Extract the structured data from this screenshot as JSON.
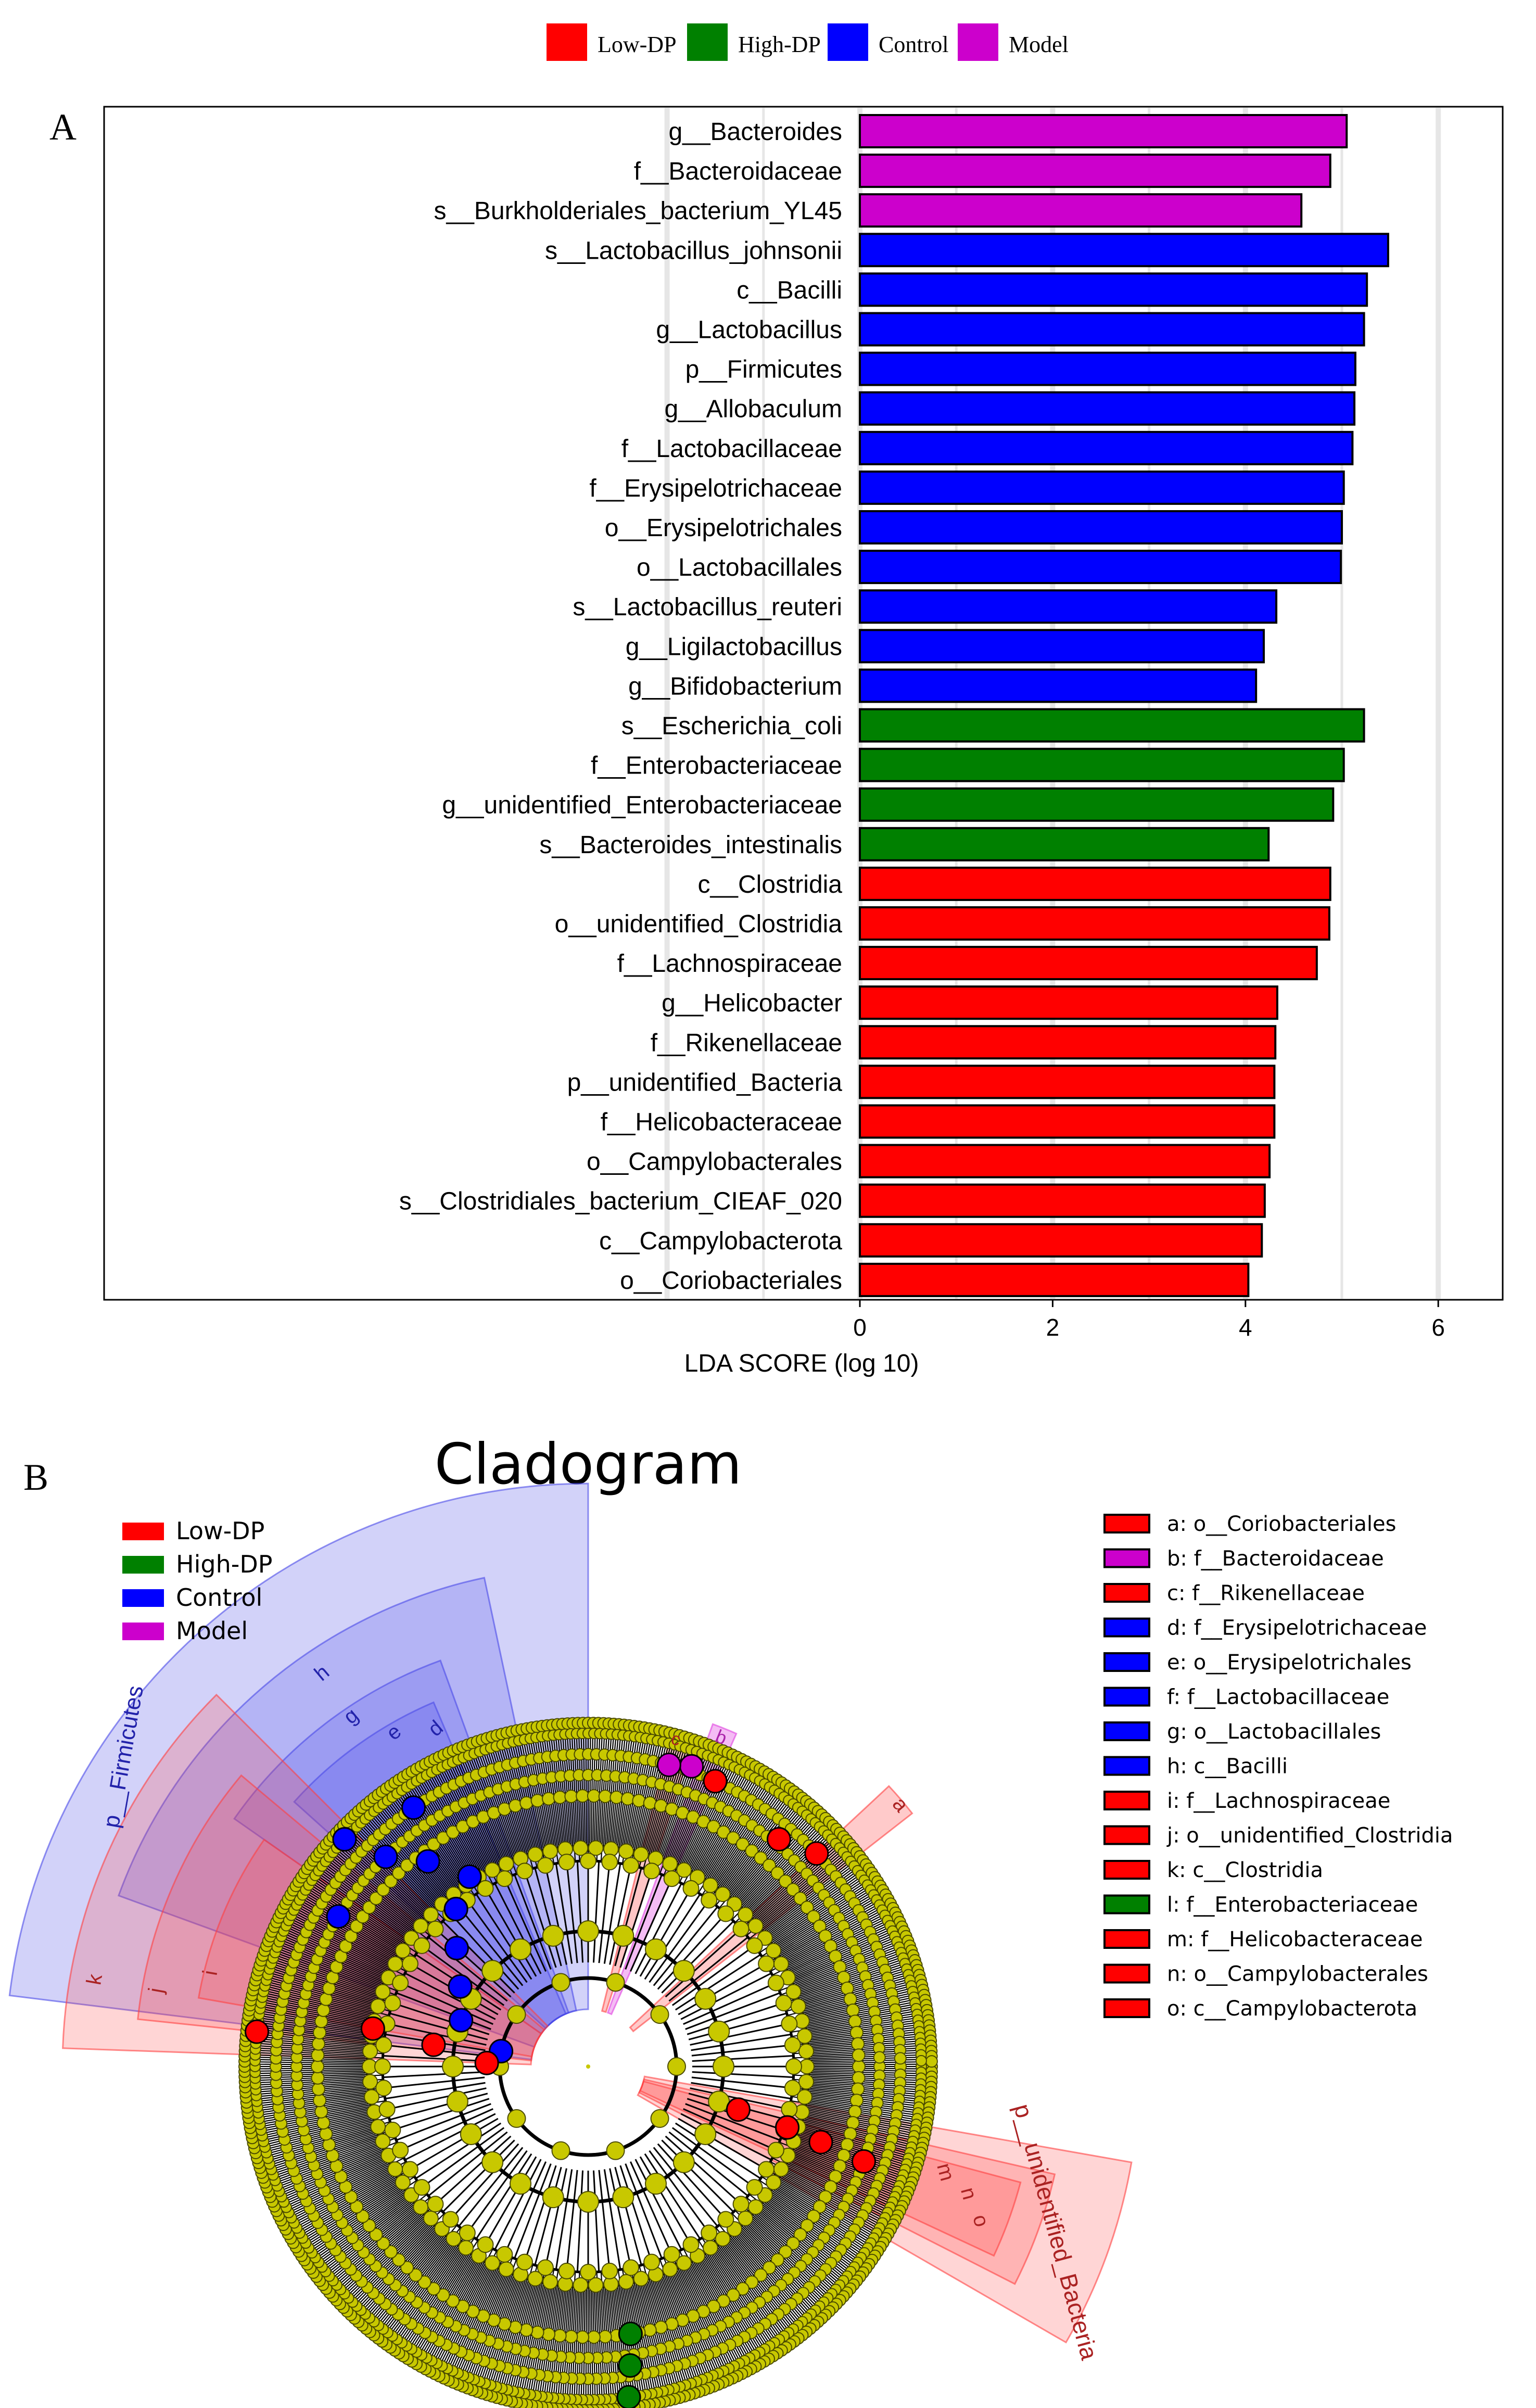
{
  "colors": {
    "low_dp": "#FF0000",
    "high_dp": "#008000",
    "control": "#0000FF",
    "model": "#CC00CC",
    "node": "#C8C800",
    "frame": "#000000",
    "grid": "#E6E6E6"
  },
  "top_legend": [
    {
      "label": "Low-DP",
      "group": "low_dp"
    },
    {
      "label": "High-DP",
      "group": "high_dp"
    },
    {
      "label": "Control",
      "group": "control"
    },
    {
      "label": "Model",
      "group": "model"
    }
  ],
  "panel_a": {
    "label": "A"
  },
  "panel_b": {
    "label": "B",
    "title": "Cladogram",
    "legend": [
      {
        "label": "Low-DP",
        "group": "low_dp"
      },
      {
        "label": "High-DP",
        "group": "high_dp"
      },
      {
        "label": "Control",
        "group": "control"
      },
      {
        "label": "Model",
        "group": "model"
      }
    ],
    "key": [
      {
        "text": "a: o__Coriobacteriales",
        "group": "low_dp"
      },
      {
        "text": "b: f__Bacteroidaceae",
        "group": "model"
      },
      {
        "text": "c: f__Rikenellaceae",
        "group": "low_dp"
      },
      {
        "text": "d: f__Erysipelotrichaceae",
        "group": "control"
      },
      {
        "text": "e: o__Erysipelotrichales",
        "group": "control"
      },
      {
        "text": "f: f__Lactobacillaceae",
        "group": "control"
      },
      {
        "text": "g: o__Lactobacillales",
        "group": "control"
      },
      {
        "text": "h: c__Bacilli",
        "group": "control"
      },
      {
        "text": "i: f__Lachnospiraceae",
        "group": "low_dp"
      },
      {
        "text": "j: o__unidentified_Clostridia",
        "group": "low_dp"
      },
      {
        "text": "k: c__Clostridia",
        "group": "low_dp"
      },
      {
        "text": "l: f__Enterobacteriaceae",
        "group": "high_dp"
      },
      {
        "text": "m: f__Helicobacteraceae",
        "group": "low_dp"
      },
      {
        "text": "n: o__Campylobacterales",
        "group": "low_dp"
      },
      {
        "text": "o: c__Campylobacterota",
        "group": "low_dp"
      }
    ],
    "sector_labels": {
      "firmicutes": "p__Firmicutes",
      "unidentified_bacteria": "p__unidentified_Bacteria",
      "h": "h",
      "g": "g",
      "e": "e",
      "d": "d",
      "i": "i",
      "j": "j",
      "k": "k",
      "a": "a",
      "b": "b",
      "c": "c",
      "m": "m",
      "n": "n",
      "o": "o"
    }
  },
  "chart_data": [
    {
      "type": "bar",
      "orientation": "horizontal",
      "xlabel": "LDA SCORE (log 10)",
      "xlim": [
        0,
        6.7
      ],
      "xticks": [
        0,
        2,
        4,
        6
      ],
      "categories": [
        "g__Bacteroides",
        "f__Bacteroidaceae",
        "s__Burkholderiales_bacterium_YL45",
        "s__Lactobacillus_johnsonii",
        "c__Bacilli",
        "g__Lactobacillus",
        "p__Firmicutes",
        "g__Allobaculum",
        "f__Lactobacillaceae",
        "f__Erysipelotrichaceae",
        "o__Erysipelotrichales",
        "o__Lactobacillales",
        "s__Lactobacillus_reuteri",
        "g__Ligilactobacillus",
        "g__Bifidobacterium",
        "s__Escherichia_coli",
        "f__Enterobacteriaceae",
        "g__unidentified_Enterobacteriaceae",
        "s__Bacteroides_intestinalis",
        "c__Clostridia",
        "o__unidentified_Clostridia",
        "f__Lachnospiraceae",
        "g__Helicobacter",
        "f__Rikenellaceae",
        "p__unidentified_Bacteria",
        "f__Helicobacteraceae",
        "o__Campylobacterales",
        "s__Clostridiales_bacterium_CIEAF_020",
        "c__Campylobacterota",
        "o__Coriobacteriales"
      ],
      "values": [
        5.05,
        4.88,
        4.58,
        5.48,
        5.26,
        5.23,
        5.14,
        5.13,
        5.11,
        5.02,
        5.0,
        4.99,
        4.32,
        4.19,
        4.11,
        5.23,
        5.02,
        4.91,
        4.24,
        4.88,
        4.87,
        4.74,
        4.33,
        4.31,
        4.3,
        4.3,
        4.25,
        4.2,
        4.17,
        4.03
      ],
      "groups": [
        "model",
        "model",
        "model",
        "control",
        "control",
        "control",
        "control",
        "control",
        "control",
        "control",
        "control",
        "control",
        "control",
        "control",
        "control",
        "high_dp",
        "high_dp",
        "high_dp",
        "high_dp",
        "low_dp",
        "low_dp",
        "low_dp",
        "low_dp",
        "low_dp",
        "low_dp",
        "low_dp",
        "low_dp",
        "low_dp",
        "low_dp",
        "low_dp"
      ]
    },
    {
      "type": "cladogram",
      "title": "Cladogram",
      "highlighted_taxa": [
        {
          "letter": "a",
          "taxon": "o__Coriobacteriales",
          "group": "low_dp"
        },
        {
          "letter": "b",
          "taxon": "f__Bacteroidaceae",
          "group": "model"
        },
        {
          "letter": "c",
          "taxon": "f__Rikenellaceae",
          "group": "low_dp"
        },
        {
          "letter": "d",
          "taxon": "f__Erysipelotrichaceae",
          "group": "control"
        },
        {
          "letter": "e",
          "taxon": "o__Erysipelotrichales",
          "group": "control"
        },
        {
          "letter": "f",
          "taxon": "f__Lactobacillaceae",
          "group": "control"
        },
        {
          "letter": "g",
          "taxon": "o__Lactobacillales",
          "group": "control"
        },
        {
          "letter": "h",
          "taxon": "c__Bacilli",
          "group": "control"
        },
        {
          "letter": "i",
          "taxon": "f__Lachnospiraceae",
          "group": "low_dp"
        },
        {
          "letter": "j",
          "taxon": "o__unidentified_Clostridia",
          "group": "low_dp"
        },
        {
          "letter": "k",
          "taxon": "c__Clostridia",
          "group": "low_dp"
        },
        {
          "letter": "l",
          "taxon": "f__Enterobacteriaceae",
          "group": "high_dp"
        },
        {
          "letter": "m",
          "taxon": "f__Helicobacteraceae",
          "group": "low_dp"
        },
        {
          "letter": "n",
          "taxon": "o__Campylobacterales",
          "group": "low_dp"
        },
        {
          "letter": "o",
          "taxon": "c__Campylobacterota",
          "group": "low_dp"
        }
      ]
    }
  ]
}
